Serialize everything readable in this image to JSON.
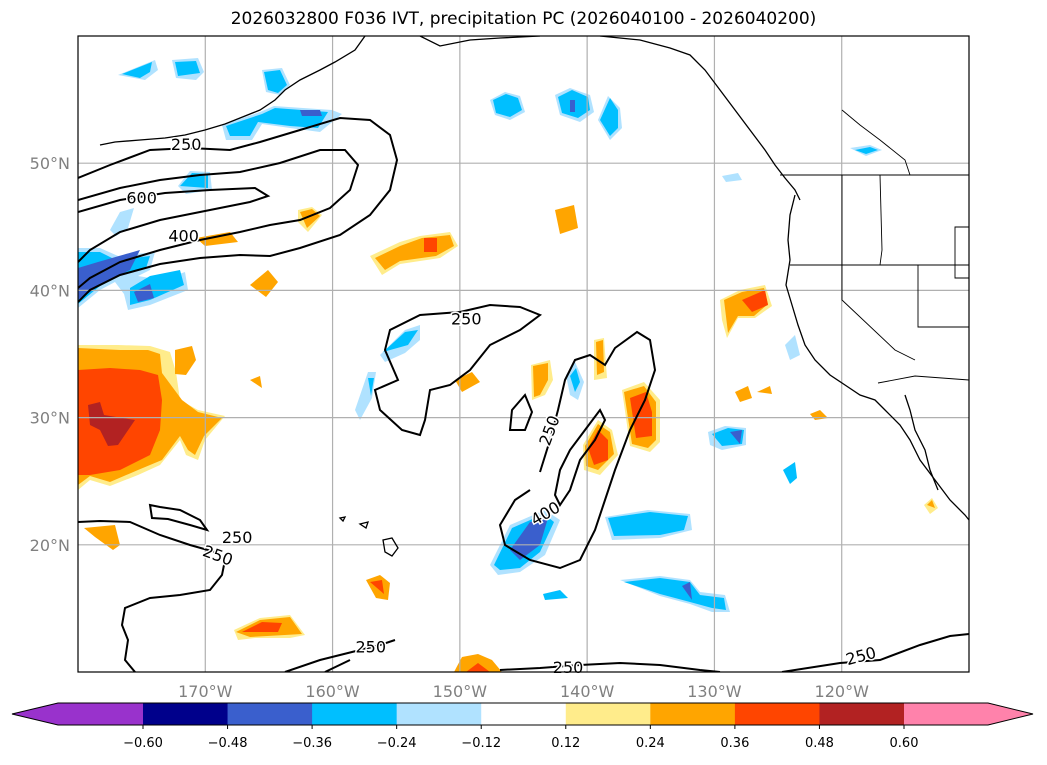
{
  "title": "2026032800 F036 IVT, precipitation PC (2026040100 - 2026040200)",
  "map": {
    "extent": {
      "lon_min": -180,
      "lon_max": -110,
      "lat_min": 10,
      "lat_max": 60
    },
    "lon_ticks": [
      {
        "lon": -170,
        "label": "170°W"
      },
      {
        "lon": -160,
        "label": "160°W"
      },
      {
        "lon": -150,
        "label": "150°W"
      },
      {
        "lon": -140,
        "label": "140°W"
      },
      {
        "lon": -130,
        "label": "130°W"
      },
      {
        "lon": -120,
        "label": "120°W"
      }
    ],
    "lat_ticks": [
      {
        "lat": 50,
        "label": "50°N"
      },
      {
        "lat": 40,
        "label": "40°N"
      },
      {
        "lat": 30,
        "label": "30°N"
      },
      {
        "lat": 20,
        "label": "20°N"
      }
    ],
    "gridline_color": "#b0b0b0",
    "ivt_contour_levels": [
      250,
      400,
      600
    ],
    "ivt_contour_labels": [
      {
        "text": "250",
        "lon": -171.5,
        "lat": 51.5
      },
      {
        "text": "600",
        "lon": -175,
        "lat": 47.3
      },
      {
        "text": "400",
        "lon": -171.7,
        "lat": 44.3
      },
      {
        "text": "250",
        "lon": -149.5,
        "lat": 37.8
      },
      {
        "text": "250",
        "lon": -143,
        "lat": 29,
        "rotate": -70
      },
      {
        "text": "400",
        "lon": -143.3,
        "lat": 22.5,
        "rotate": -30
      },
      {
        "text": "250",
        "lon": -167.5,
        "lat": 20.6
      },
      {
        "text": "250",
        "lon": -169,
        "lat": 19.2,
        "rotate": 20
      },
      {
        "text": "250",
        "lon": -157,
        "lat": 12
      },
      {
        "text": "250",
        "lon": -141.5,
        "lat": 10.4
      },
      {
        "text": "250",
        "lon": -118.5,
        "lat": 11.3,
        "rotate": -15
      }
    ]
  },
  "colorbar": {
    "ticks": [
      "−0.60",
      "−0.48",
      "−0.36",
      "−0.24",
      "−0.12",
      "0.12",
      "0.24",
      "0.36",
      "0.48",
      "0.60"
    ],
    "colors": [
      "#9932cc",
      "#00008b",
      "#3a5fcd",
      "#00bfff",
      "#b0e2ff",
      "#ffffff",
      "#ffec8b",
      "#ffa500",
      "#ff4500",
      "#b22222",
      "#ff82ab"
    ],
    "extend": "both"
  }
}
